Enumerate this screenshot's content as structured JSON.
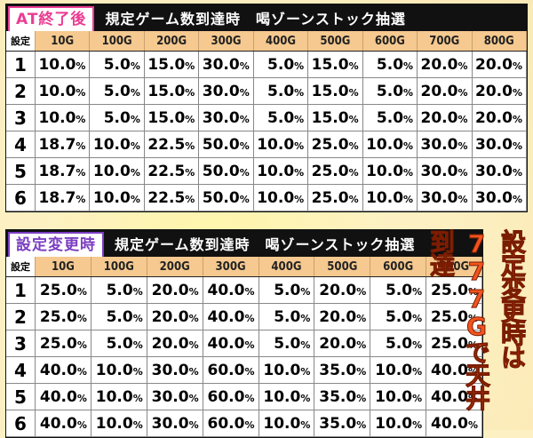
{
  "table1": {
    "tag": "AT終了後",
    "subtitle": "規定ゲーム数到達時　喝ゾーンストック抽選",
    "setting_header": "設定",
    "columns": [
      "10G",
      "100G",
      "200G",
      "300G",
      "400G",
      "500G",
      "600G",
      "700G",
      "800G"
    ],
    "rows": [
      {
        "setting": "1",
        "values": [
          "10.0",
          "5.0",
          "15.0",
          "30.0",
          "5.0",
          "15.0",
          "5.0",
          "20.0",
          "20.0"
        ]
      },
      {
        "setting": "2",
        "values": [
          "10.0",
          "5.0",
          "15.0",
          "30.0",
          "5.0",
          "15.0",
          "5.0",
          "20.0",
          "20.0"
        ]
      },
      {
        "setting": "3",
        "values": [
          "10.0",
          "5.0",
          "15.0",
          "30.0",
          "5.0",
          "15.0",
          "5.0",
          "20.0",
          "20.0"
        ]
      },
      {
        "setting": "4",
        "values": [
          "18.7",
          "10.0",
          "22.5",
          "50.0",
          "10.0",
          "25.0",
          "10.0",
          "30.0",
          "30.0"
        ]
      },
      {
        "setting": "5",
        "values": [
          "18.7",
          "10.0",
          "22.5",
          "50.0",
          "10.0",
          "25.0",
          "10.0",
          "30.0",
          "30.0"
        ]
      },
      {
        "setting": "6",
        "values": [
          "18.7",
          "10.0",
          "22.5",
          "50.0",
          "10.0",
          "25.0",
          "10.0",
          "30.0",
          "30.0"
        ]
      }
    ]
  },
  "table2": {
    "tag": "設定変更時",
    "subtitle": "規定ゲーム数到達時　喝ゾーンストック抽選",
    "setting_header": "設定",
    "columns": [
      "10G",
      "100G",
      "200G",
      "300G",
      "400G",
      "500G",
      "600G",
      "700G"
    ],
    "rows": [
      {
        "setting": "1",
        "values": [
          "25.0",
          "5.0",
          "20.0",
          "40.0",
          "5.0",
          "20.0",
          "5.0",
          "25.0"
        ]
      },
      {
        "setting": "2",
        "values": [
          "25.0",
          "5.0",
          "20.0",
          "40.0",
          "5.0",
          "20.0",
          "5.0",
          "25.0"
        ]
      },
      {
        "setting": "3",
        "values": [
          "25.0",
          "5.0",
          "20.0",
          "40.0",
          "5.0",
          "20.0",
          "5.0",
          "25.0"
        ]
      },
      {
        "setting": "4",
        "values": [
          "40.0",
          "10.0",
          "30.0",
          "60.0",
          "10.0",
          "35.0",
          "10.0",
          "40.0"
        ]
      },
      {
        "setting": "5",
        "values": [
          "40.0",
          "10.0",
          "30.0",
          "60.0",
          "10.0",
          "35.0",
          "10.0",
          "40.0"
        ]
      },
      {
        "setting": "6",
        "values": [
          "40.0",
          "10.0",
          "30.0",
          "60.0",
          "10.0",
          "35.0",
          "10.0",
          "40.0"
        ]
      }
    ]
  },
  "percent_symbol": "%",
  "side_note": "設定変更時は777Gで天井到達"
}
